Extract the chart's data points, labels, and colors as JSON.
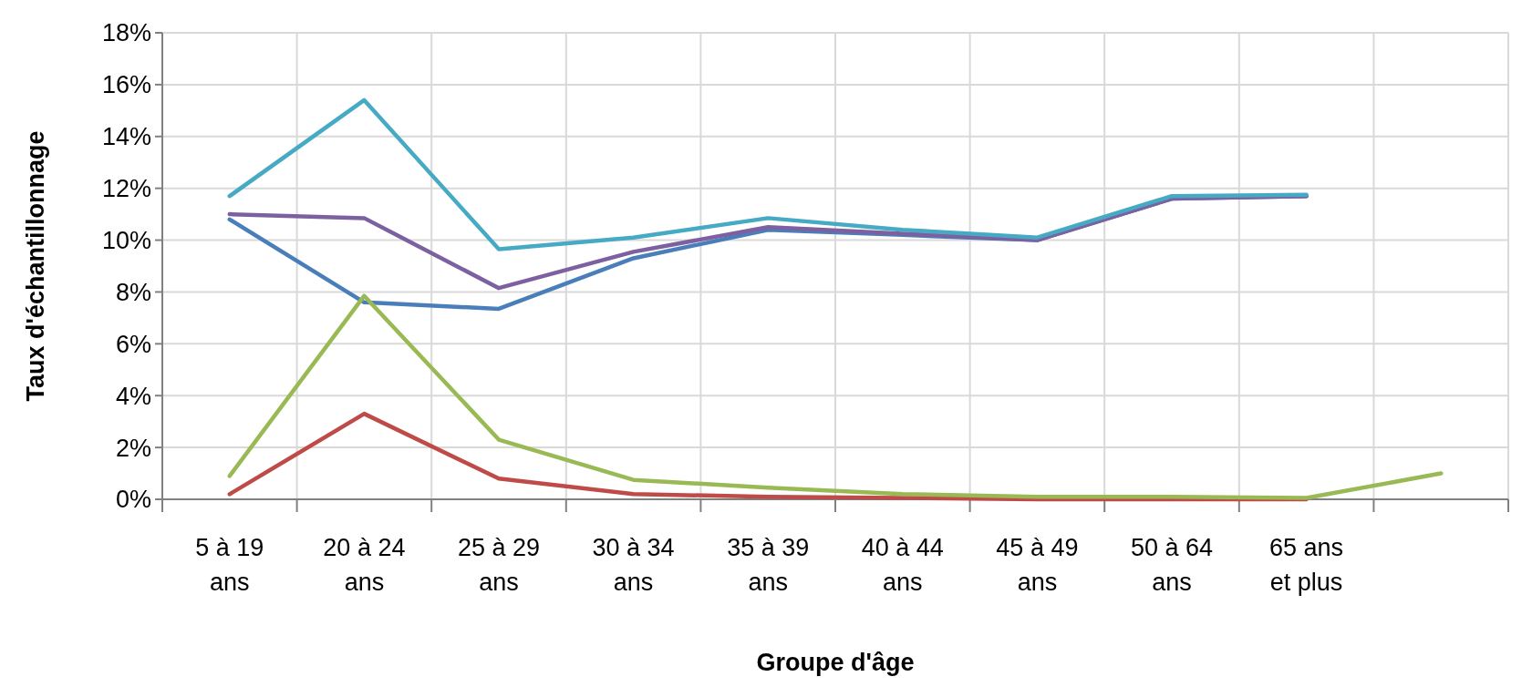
{
  "chart_data": {
    "type": "line",
    "xlabel": "Groupe d'âge",
    "ylabel": "Taux d'échantillonnage",
    "categories": [
      "5 à 19 ans",
      "20 à 24 ans",
      "25 à 29 ans",
      "30 à 34 ans",
      "35 à 39 ans",
      "40 à 44 ans",
      "45 à 49 ans",
      "50 à 64 ans",
      "65 ans et plus",
      null
    ],
    "series": [
      {
        "color": "#4a7ebb",
        "values": [
          10.8,
          7.6,
          7.35,
          9.3,
          10.4,
          10.2,
          10.0,
          11.6,
          11.7,
          null
        ]
      },
      {
        "color": "#be4b48",
        "values": [
          0.2,
          3.3,
          0.8,
          0.2,
          0.1,
          0.05,
          0.0,
          0.0,
          0.0,
          null
        ]
      },
      {
        "color": "#98b954",
        "values": [
          0.9,
          7.85,
          2.3,
          0.75,
          0.45,
          0.2,
          0.1,
          0.1,
          0.05,
          1.0
        ]
      },
      {
        "color": "#7d60a0",
        "values": [
          11.0,
          10.85,
          8.15,
          9.55,
          10.5,
          10.25,
          10.0,
          11.6,
          11.7,
          null
        ]
      },
      {
        "color": "#46aac5",
        "values": [
          11.7,
          15.4,
          9.65,
          10.1,
          10.85,
          10.4,
          10.1,
          11.7,
          11.75,
          null
        ]
      }
    ],
    "ylim": [
      0,
      18
    ],
    "yticks": [
      {
        "value": 0,
        "label": "0%"
      },
      {
        "value": 2,
        "label": "2%"
      },
      {
        "value": 4,
        "label": "4%"
      },
      {
        "value": 6,
        "label": "6%"
      },
      {
        "value": 8,
        "label": "8%"
      },
      {
        "value": 10,
        "label": "10%"
      },
      {
        "value": 12,
        "label": "12%"
      },
      {
        "value": 14,
        "label": "14%"
      },
      {
        "value": 16,
        "label": "16%"
      },
      {
        "value": 18,
        "label": "18%"
      }
    ],
    "grid": true,
    "marker": "none",
    "line_style": "solid"
  }
}
